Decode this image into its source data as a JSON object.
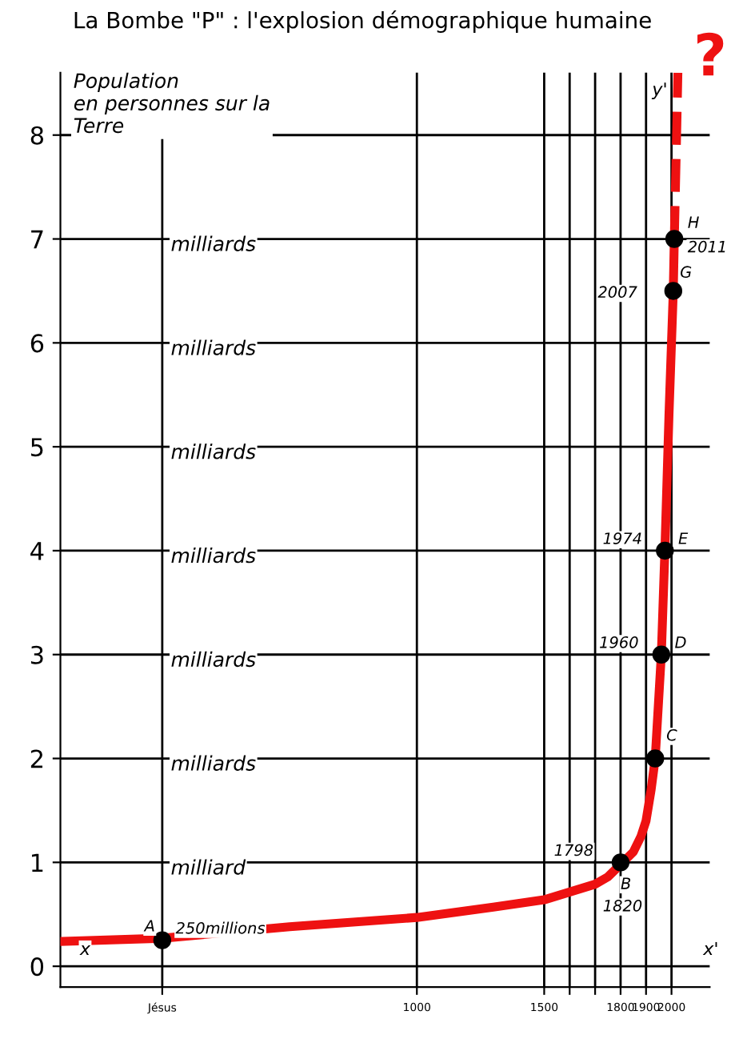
{
  "chart_data": {
    "type": "line",
    "title": "La Bombe \"P\" : l'explosion démographique humaine",
    "ylabel": "Population\nen personnes sur la\nTerre",
    "xlim": [
      -400,
      2150
    ],
    "ylim": [
      -0.2,
      8.6
    ],
    "xticks": [
      {
        "value": 0,
        "label": "Jésus"
      },
      1000,
      1500,
      {
        "value": 1600,
        "label": null
      },
      {
        "value": 1700,
        "label": null
      },
      1800,
      1900,
      2000
    ],
    "yticks": [
      0,
      1,
      2,
      3,
      4,
      5,
      6,
      7,
      8
    ],
    "grid": true,
    "legend": false,
    "series": [
      {
        "color": "#ee1111",
        "line_style": "solid",
        "marker": "none",
        "x": [
          -390,
          0,
          500,
          1000,
          1300,
          1500,
          1700,
          1750,
          1800,
          1850,
          1880,
          1900,
          1920,
          1936,
          1960,
          1974,
          1990,
          2007,
          2011
        ],
        "values": [
          0.24,
          0.27,
          0.38,
          0.47,
          0.57,
          0.64,
          0.79,
          0.86,
          0.98,
          1.1,
          1.25,
          1.4,
          1.7,
          2.0,
          3.0,
          4.0,
          5.3,
          6.5,
          7.0
        ]
      },
      {
        "color": "#ee1111",
        "line_style": "dashed",
        "marker": "none",
        "x": [
          2011,
          2020,
          2025
        ],
        "values": [
          7.0,
          8.0,
          8.6
        ]
      },
      {
        "type": "scatter",
        "color": "#000000",
        "marker": "circle",
        "x": [
          0,
          1800,
          1936,
          1960,
          1974,
          2007,
          2011
        ],
        "values": [
          0.25,
          1.0,
          2.0,
          3.0,
          4.0,
          6.5,
          7.0
        ]
      }
    ],
    "annotations": [
      {
        "text": "A",
        "x": 0,
        "y": 0.25
      },
      {
        "text": "250millions",
        "x": 0,
        "y": 0.25
      },
      {
        "text": "B",
        "x": 1800,
        "y": 1.0
      },
      {
        "text": "1798",
        "x": 1800,
        "y": 1.0
      },
      {
        "text": "1820",
        "x": 1800,
        "y": 1.0
      },
      {
        "text": "C",
        "x": 1936,
        "y": 2.0
      },
      {
        "text": "D",
        "x": 1960,
        "y": 3.0
      },
      {
        "text": "1960",
        "x": 1960,
        "y": 3.0
      },
      {
        "text": "E",
        "x": 1974,
        "y": 4.0
      },
      {
        "text": "1974",
        "x": 1974,
        "y": 4.0
      },
      {
        "text": "G",
        "x": 2007,
        "y": 6.5
      },
      {
        "text": "2007",
        "x": 2007,
        "y": 6.5
      },
      {
        "text": "H",
        "x": 2011,
        "y": 7.0
      },
      {
        "text": "2011",
        "x": 2011,
        "y": 7.0
      },
      "milliard",
      "milliards",
      "milliards",
      "milliards",
      "milliards",
      "milliards",
      "milliards",
      "?",
      "y'",
      "x'",
      "x"
    ]
  }
}
